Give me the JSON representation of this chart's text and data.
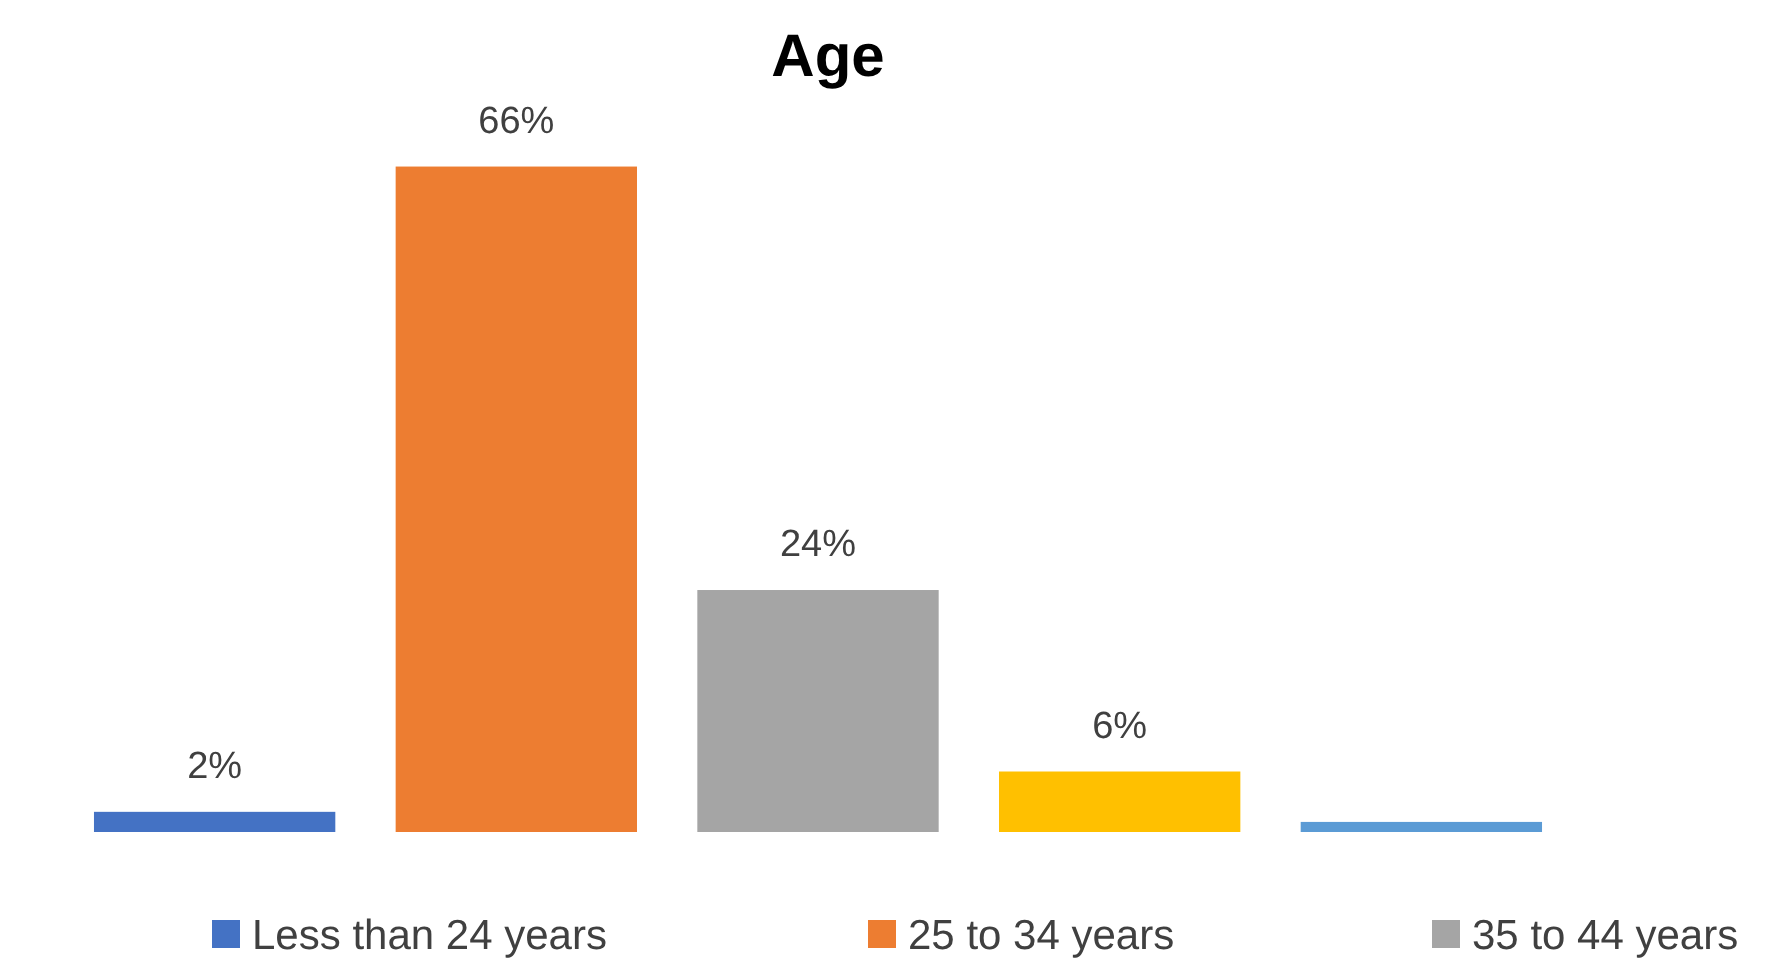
{
  "chart_data": {
    "type": "bar",
    "title": "Age",
    "categories": [
      null
    ],
    "legend": "bottom",
    "series": [
      {
        "name": "Less than 24 years",
        "color": "#4472c4",
        "values": [
          2
        ],
        "value_labels": [
          "2%"
        ]
      },
      {
        "name": "25 to 34 years",
        "color": "#ed7d31",
        "values": [
          66
        ],
        "value_labels": [
          "66%"
        ]
      },
      {
        "name": "35 to 44 years",
        "color": "#a5a5a5",
        "values": [
          24
        ],
        "value_labels": [
          "24%"
        ]
      },
      {
        "color": "#ffc000",
        "values": [
          6
        ],
        "value_labels": [
          "6%"
        ]
      },
      {
        "color": "#5b9bd5",
        "values": [
          1
        ],
        "value_labels": [
          null
        ]
      }
    ]
  }
}
